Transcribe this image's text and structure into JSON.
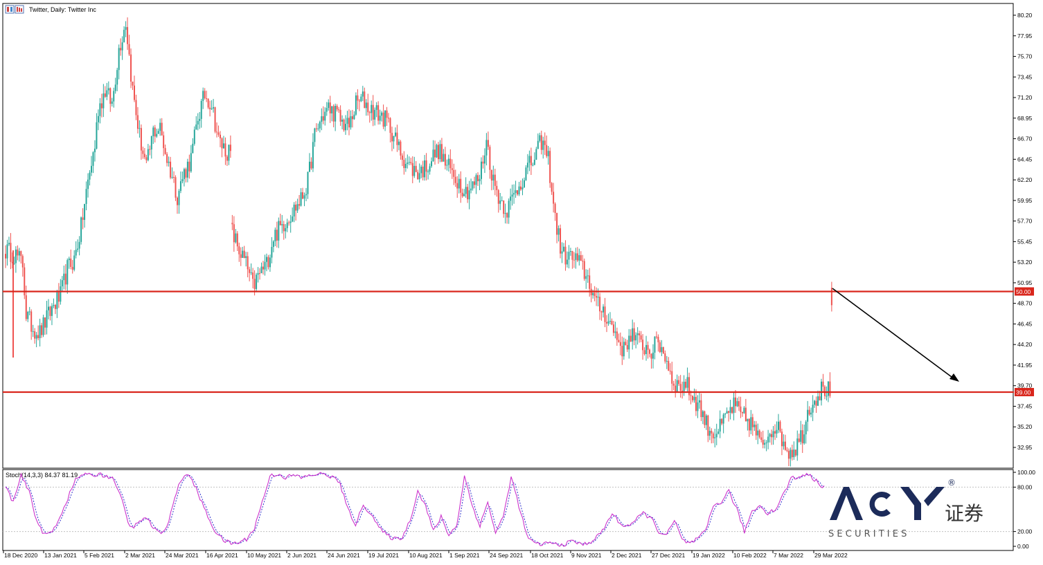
{
  "chart_title": "Twitter, Daily:  Twitter Inc",
  "indicator_label": "Stoch(14,3,3) 84.37 81.19",
  "logo": {
    "brand": "ACY",
    "chinese": "证券",
    "sub": "S E C U R I T I E S",
    "reg": "®"
  },
  "colors": {
    "up": "#26a69a",
    "down": "#ef5350",
    "level": "#d9261c",
    "arrow": "#000000",
    "stoch_main": "#cc33cc",
    "stoch_signal": "#2a2acc",
    "logo": "#1c2b5a"
  },
  "chart_data": [
    {
      "type": "candlestick",
      "title": "Twitter, Daily:  Twitter Inc",
      "ylim": [
        31.5,
        80.9
      ],
      "price_ticks": [
        "80.20",
        "77.95",
        "75.70",
        "73.45",
        "71.20",
        "68.95",
        "66.70",
        "64.45",
        "62.20",
        "59.95",
        "57.70",
        "55.45",
        "53.20",
        "50.95",
        "48.70",
        "46.45",
        "44.20",
        "41.95",
        "39.70",
        "37.45",
        "35.20",
        "32.95"
      ],
      "x_tick_labels": [
        "18 Dec 2020",
        "13 Jan 2021",
        "5 Feb 2021",
        "2 Mar 2021",
        "24 Mar 2021",
        "16 Apr 2021",
        "10 May 2021",
        "2 Jun 2021",
        "24 Jun 2021",
        "19 Jul 2021",
        "10 Aug 2021",
        "1 Sep 2021",
        "24 Sep 2021",
        "18 Oct 2021",
        "9 Nov 2021",
        "2 Dec 2021",
        "27 Dec 2021",
        "19 Jan 2022",
        "10 Feb 2022",
        "7 Mar 2022",
        "29 Mar 2022"
      ],
      "levels": [
        {
          "value": 50.0,
          "label": "50.00"
        },
        {
          "value": 39.0,
          "label": "39.00"
        }
      ],
      "close_anchors": [
        [
          0,
          54.5
        ],
        [
          6,
          54.0
        ],
        [
          10,
          53.0
        ],
        [
          12,
          47.5
        ],
        [
          16,
          46.0
        ],
        [
          20,
          45.5
        ],
        [
          28,
          48.5
        ],
        [
          32,
          49.5
        ],
        [
          36,
          52.5
        ],
        [
          40,
          53.5
        ],
        [
          44,
          57.0
        ],
        [
          48,
          62.0
        ],
        [
          52,
          66.0
        ],
        [
          54,
          70.0
        ],
        [
          58,
          72.0
        ],
        [
          62,
          70.5
        ],
        [
          66,
          76.5
        ],
        [
          70,
          79.5
        ],
        [
          74,
          72.0
        ],
        [
          78,
          67.0
        ],
        [
          82,
          63.5
        ],
        [
          86,
          67.5
        ],
        [
          90,
          67.8
        ],
        [
          94,
          64.5
        ],
        [
          98,
          62.0
        ],
        [
          100,
          60.5
        ],
        [
          104,
          63.0
        ],
        [
          108,
          64.5
        ],
        [
          112,
          69.0
        ],
        [
          116,
          71.5
        ],
        [
          120,
          70.5
        ],
        [
          124,
          66.5
        ],
        [
          128,
          65.5
        ],
        [
          131,
          65.0
        ],
        [
          132,
          56.5
        ],
        [
          136,
          54.5
        ],
        [
          140,
          53.0
        ],
        [
          144,
          50.5
        ],
        [
          148,
          52.0
        ],
        [
          152,
          53.0
        ],
        [
          156,
          56.0
        ],
        [
          160,
          57.0
        ],
        [
          164,
          58.0
        ],
        [
          168,
          59.0
        ],
        [
          172,
          60.0
        ],
        [
          176,
          62.0
        ],
        [
          180,
          67.0
        ],
        [
          184,
          69.0
        ],
        [
          188,
          70.0
        ],
        [
          192,
          69.5
        ],
        [
          196,
          68.5
        ],
        [
          200,
          68.0
        ],
        [
          204,
          70.5
        ],
        [
          208,
          71.0
        ],
        [
          212,
          70.0
        ],
        [
          216,
          69.5
        ],
        [
          220,
          69.0
        ],
        [
          224,
          68.0
        ],
        [
          228,
          66.0
        ],
        [
          232,
          64.5
        ],
        [
          236,
          63.5
        ],
        [
          240,
          63.0
        ],
        [
          244,
          63.5
        ],
        [
          248,
          64.5
        ],
        [
          252,
          65.5
        ],
        [
          256,
          64.0
        ],
        [
          260,
          63.0
        ],
        [
          264,
          62.0
        ],
        [
          268,
          61.0
        ],
        [
          272,
          61.5
        ],
        [
          276,
          62.5
        ],
        [
          280,
          66.5
        ],
        [
          284,
          62.0
        ],
        [
          288,
          60.0
        ],
        [
          292,
          59.0
        ],
        [
          296,
          60.5
        ],
        [
          300,
          62.0
        ],
        [
          304,
          63.5
        ],
        [
          308,
          64.5
        ],
        [
          312,
          66.5
        ],
        [
          316,
          64.5
        ],
        [
          320,
          58.0
        ],
        [
          324,
          54.0
        ],
        [
          328,
          53.8
        ],
        [
          332,
          53.5
        ],
        [
          336,
          52.5
        ],
        [
          340,
          51.0
        ],
        [
          344,
          48.5
        ],
        [
          348,
          48.0
        ],
        [
          352,
          46.5
        ],
        [
          356,
          45.0
        ],
        [
          360,
          43.5
        ],
        [
          364,
          45.5
        ],
        [
          368,
          44.5
        ],
        [
          372,
          44.0
        ],
        [
          376,
          43.5
        ],
        [
          380,
          44.5
        ],
        [
          384,
          43.0
        ],
        [
          388,
          40.5
        ],
        [
          392,
          39.5
        ],
        [
          396,
          40.0
        ],
        [
          400,
          38.5
        ],
        [
          404,
          37.5
        ],
        [
          408,
          35.5
        ],
        [
          412,
          34.5
        ],
        [
          416,
          35.0
        ],
        [
          420,
          36.5
        ],
        [
          424,
          37.5
        ],
        [
          428,
          36.5
        ],
        [
          432,
          36.0
        ],
        [
          436,
          35.0
        ],
        [
          440,
          33.0
        ],
        [
          444,
          34.5
        ],
        [
          448,
          35.5
        ],
        [
          452,
          34.0
        ],
        [
          456,
          32.5
        ],
        [
          460,
          33.0
        ],
        [
          464,
          34.5
        ],
        [
          468,
          37.5
        ],
        [
          472,
          38.5
        ],
        [
          476,
          39.5
        ],
        [
          480,
          39.0
        ],
        [
          481,
          48.5
        ]
      ],
      "stoch_anchors": [
        [
          0,
          80
        ],
        [
          4,
          60
        ],
        [
          8,
          95
        ],
        [
          12,
          75
        ],
        [
          16,
          35
        ],
        [
          20,
          15
        ],
        [
          24,
          20
        ],
        [
          28,
          40
        ],
        [
          32,
          65
        ],
        [
          36,
          90
        ],
        [
          40,
          98
        ],
        [
          44,
          95
        ],
        [
          48,
          98
        ],
        [
          52,
          95
        ],
        [
          56,
          90
        ],
        [
          60,
          60
        ],
        [
          64,
          25
        ],
        [
          68,
          30
        ],
        [
          72,
          40
        ],
        [
          76,
          25
        ],
        [
          80,
          15
        ],
        [
          84,
          35
        ],
        [
          88,
          75
        ],
        [
          92,
          98
        ],
        [
          96,
          90
        ],
        [
          100,
          65
        ],
        [
          104,
          40
        ],
        [
          108,
          20
        ],
        [
          112,
          8
        ],
        [
          116,
          4
        ],
        [
          120,
          5
        ],
        [
          124,
          10
        ],
        [
          128,
          25
        ],
        [
          132,
          60
        ],
        [
          136,
          95
        ],
        [
          140,
          98
        ],
        [
          144,
          93
        ],
        [
          148,
          96
        ],
        [
          152,
          93
        ],
        [
          156,
          95
        ],
        [
          160,
          98
        ],
        [
          164,
          97
        ],
        [
          168,
          94
        ],
        [
          172,
          85
        ],
        [
          176,
          50
        ],
        [
          180,
          30
        ],
        [
          184,
          55
        ],
        [
          188,
          45
        ],
        [
          192,
          25
        ],
        [
          196,
          15
        ],
        [
          200,
          10
        ],
        [
          204,
          12
        ],
        [
          208,
          35
        ],
        [
          212,
          75
        ],
        [
          216,
          55
        ],
        [
          220,
          20
        ],
        [
          224,
          40
        ],
        [
          228,
          15
        ],
        [
          232,
          28
        ],
        [
          236,
          95
        ],
        [
          240,
          55
        ],
        [
          244,
          28
        ],
        [
          248,
          60
        ],
        [
          252,
          18
        ],
        [
          256,
          40
        ],
        [
          260,
          94
        ],
        [
          264,
          55
        ],
        [
          268,
          15
        ],
        [
          272,
          3
        ],
        [
          276,
          3
        ],
        [
          280,
          5
        ],
        [
          284,
          2
        ],
        [
          288,
          3
        ],
        [
          292,
          8
        ],
        [
          296,
          2
        ],
        [
          300,
          5
        ],
        [
          304,
          12
        ],
        [
          308,
          25
        ],
        [
          312,
          45
        ],
        [
          316,
          30
        ],
        [
          320,
          28
        ],
        [
          324,
          35
        ],
        [
          328,
          45
        ],
        [
          332,
          38
        ],
        [
          336,
          20
        ],
        [
          340,
          15
        ],
        [
          344,
          35
        ],
        [
          348,
          8
        ],
        [
          352,
          4
        ],
        [
          356,
          10
        ],
        [
          360,
          20
        ],
        [
          364,
          55
        ],
        [
          368,
          60
        ],
        [
          372,
          75
        ],
        [
          376,
          50
        ],
        [
          380,
          20
        ],
        [
          384,
          48
        ],
        [
          388,
          55
        ],
        [
          392,
          45
        ],
        [
          396,
          50
        ],
        [
          400,
          70
        ],
        [
          404,
          92
        ],
        [
          408,
          93
        ],
        [
          412,
          99
        ],
        [
          416,
          90
        ],
        [
          420,
          82
        ]
      ]
    },
    {
      "type": "line",
      "title": "Stoch(14,3,3) 84.37 81.19",
      "ylim": [
        0,
        100
      ],
      "ticks": [
        "100.00",
        "80.00",
        "20.00",
        "0.00"
      ],
      "series": [
        {
          "name": "Main",
          "values": []
        },
        {
          "name": "Signal",
          "values": []
        }
      ]
    }
  ]
}
